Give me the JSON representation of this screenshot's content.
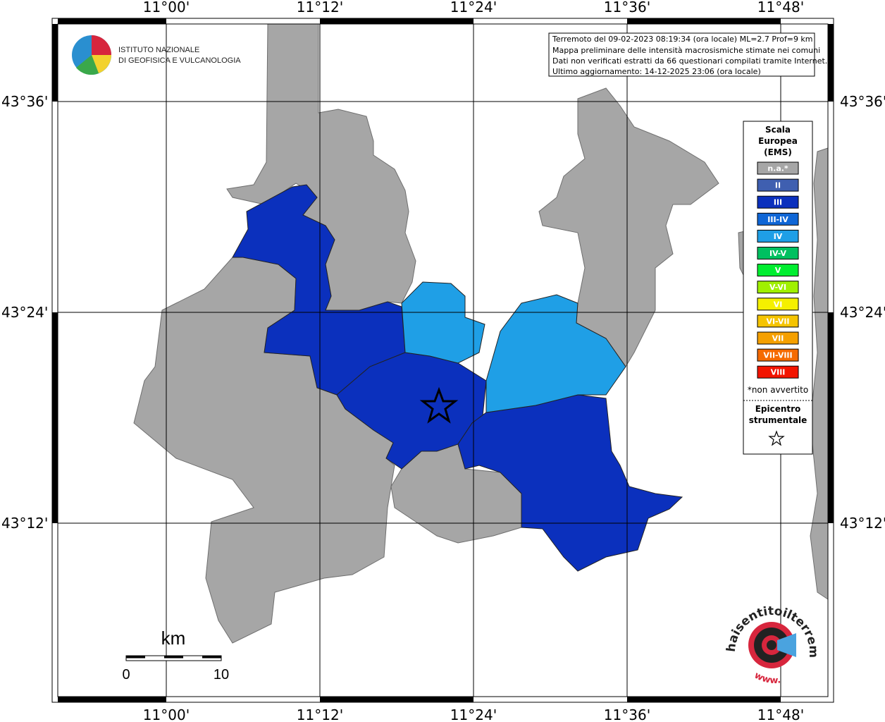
{
  "lon_labels": [
    "11°00'",
    "11°12'",
    "11°24'",
    "11°36'",
    "11°48'"
  ],
  "lat_labels": [
    "43°36'",
    "43°24'",
    "43°12'"
  ],
  "logo": {
    "lines": [
      "ISTITUTO NAZIONALE",
      "DI GEOFISICA E VULCANOLOGIA"
    ]
  },
  "info": [
    "Terremoto del 09-02-2023 08:19:34 (ora locale) ML=2.7 Prof=9 km",
    "Mappa preliminare delle intensità macrosismiche stimate nei comuni",
    "Dati non verificati estratti da 66 questionari compilati tramite Internet.",
    "Ultimo aggiornamento: 14-12-2025 23:06 (ora locale)"
  ],
  "legend": {
    "title": [
      "Scala",
      "Europea",
      "(EMS)"
    ],
    "classes": [
      {
        "label": "n.a.*",
        "color": "#a6a6a6"
      },
      {
        "label": "II",
        "color": "#3f5fb0"
      },
      {
        "label": "III",
        "color": "#0b30bd"
      },
      {
        "label": "III-IV",
        "color": "#0f66d6"
      },
      {
        "label": "IV",
        "color": "#1f9fe6"
      },
      {
        "label": "IV-V",
        "color": "#00c060"
      },
      {
        "label": "V",
        "color": "#00ee30"
      },
      {
        "label": "V-VI",
        "color": "#a0f000"
      },
      {
        "label": "VI",
        "color": "#f5f000"
      },
      {
        "label": "VI-VII",
        "color": "#f5c400"
      },
      {
        "label": "VII",
        "color": "#f5a000"
      },
      {
        "label": "VII-VIII",
        "color": "#f56a00"
      },
      {
        "label": "VIII",
        "color": "#f21400"
      }
    ],
    "note": "*non avvertito",
    "epicenter": [
      "Epicentro",
      "strumentale"
    ]
  },
  "scale_bar": {
    "unit": "km",
    "ticks": [
      0,
      10
    ]
  },
  "badge": {
    "site": "haisentitoilterremoto.it",
    "prefix": "www."
  }
}
